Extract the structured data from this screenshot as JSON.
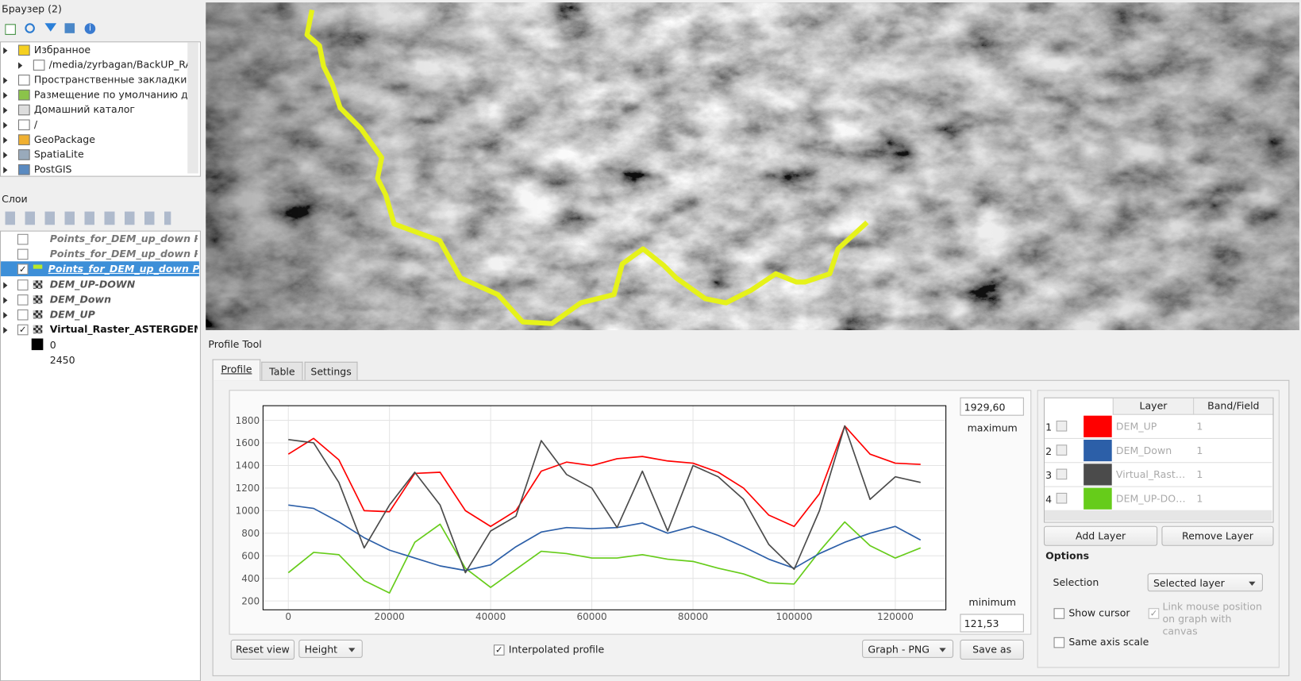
{
  "browser_panel": {
    "title": "Браузер (2)",
    "items": [
      "Избранное",
      "/media/zyrbagan/BackUP_RAID",
      "Пространственные закладки",
      "Размещение по умолчанию для п",
      "Домашний каталог",
      "/",
      "GeoPackage",
      "SpatiaLite",
      "PostGIS"
    ]
  },
  "layers_panel": {
    "title": "Слои",
    "layers": [
      {
        "name": "Points_for_DEM_up_down Points_d",
        "visible": false
      },
      {
        "name": "Points_for_DEM_up_down Points_l",
        "visible": false
      },
      {
        "name": "Points_for_DEM_up_down Profile",
        "visible": true
      },
      {
        "name": "DEM_UP-DOWN",
        "visible": false
      },
      {
        "name": "DEM_Down",
        "visible": false
      },
      {
        "name": "DEM_UP",
        "visible": false
      },
      {
        "name": "Virtual_Raster_ASTERGDEM",
        "visible": true
      }
    ],
    "legend_values": [
      0,
      2450
    ]
  },
  "profile_tool": {
    "title": "Profile Tool",
    "tabs": [
      "Profile",
      "Table",
      "Settings"
    ],
    "maximum_value": "1929,60",
    "maximum_label": "maximum",
    "minimum_label": "minimum",
    "minimum_value": "121,53",
    "reset_view": "Reset view",
    "height_select": "Height",
    "interpolated_label": "Interpolated profile",
    "interpolated": true,
    "format_select": "Graph - PNG",
    "save_as": "Save as",
    "layer_table": {
      "headers": [
        "Layer",
        "Band/Field"
      ],
      "row_numbers": [
        1,
        2,
        3,
        4
      ],
      "bands": [
        1,
        1,
        1,
        1
      ]
    },
    "add_layer": "Add Layer",
    "remove_layer": "Remove Layer",
    "options_title": "Options",
    "selection_label": "Selection",
    "selection_value": "Selected layer",
    "show_cursor_label": "Show cursor",
    "show_cursor": false,
    "link_mouse_label": "Link mouse position on graph with canvas",
    "link_mouse": true,
    "same_axis_label": "Same axis scale",
    "same_axis": false
  },
  "chart_data": {
    "type": "line",
    "grid": true,
    "x": [
      0,
      5000,
      10000,
      15000,
      20000,
      25000,
      30000,
      35000,
      40000,
      45000,
      50000,
      55000,
      60000,
      65000,
      70000,
      75000,
      80000,
      85000,
      90000,
      95000,
      100000,
      105000,
      110000,
      115000,
      120000,
      125000
    ],
    "xlim": [
      -5000,
      130000
    ],
    "xticks": [
      0,
      20000,
      40000,
      60000,
      80000,
      100000,
      120000
    ],
    "ylim": [
      121.53,
      1929.6
    ],
    "yticks": [
      200,
      400,
      600,
      800,
      1000,
      1200,
      1400,
      1600,
      1800
    ],
    "series": [
      {
        "name": "DEM_UP",
        "color": "#ff0000",
        "values": [
          1500,
          1640,
          1450,
          1000,
          990,
          1330,
          1340,
          1000,
          860,
          1000,
          1350,
          1430,
          1400,
          1460,
          1480,
          1440,
          1420,
          1340,
          1200,
          960,
          860,
          1150,
          1750,
          1500,
          1420,
          1410
        ]
      },
      {
        "name": "DEM_Down",
        "color": "#2c5fa8",
        "values": [
          1050,
          1020,
          900,
          760,
          650,
          580,
          510,
          470,
          520,
          680,
          810,
          850,
          840,
          850,
          890,
          800,
          860,
          780,
          680,
          570,
          490,
          620,
          720,
          800,
          860,
          740
        ]
      },
      {
        "name": "Virtual_Raster_ASTERGDEM",
        "color": "#4b4b4b",
        "values": [
          1630,
          1600,
          1250,
          670,
          1050,
          1340,
          1050,
          450,
          820,
          950,
          1620,
          1320,
          1200,
          850,
          1350,
          820,
          1400,
          1300,
          1100,
          700,
          480,
          1000,
          1750,
          1100,
          1300,
          1250
        ]
      },
      {
        "name": "DEM_UP-DOWN",
        "color": "#66cc1a",
        "values": [
          450,
          630,
          610,
          380,
          270,
          720,
          880,
          490,
          320,
          480,
          640,
          620,
          580,
          580,
          610,
          570,
          550,
          490,
          440,
          360,
          350,
          640,
          900,
          690,
          580,
          670
        ]
      }
    ]
  }
}
